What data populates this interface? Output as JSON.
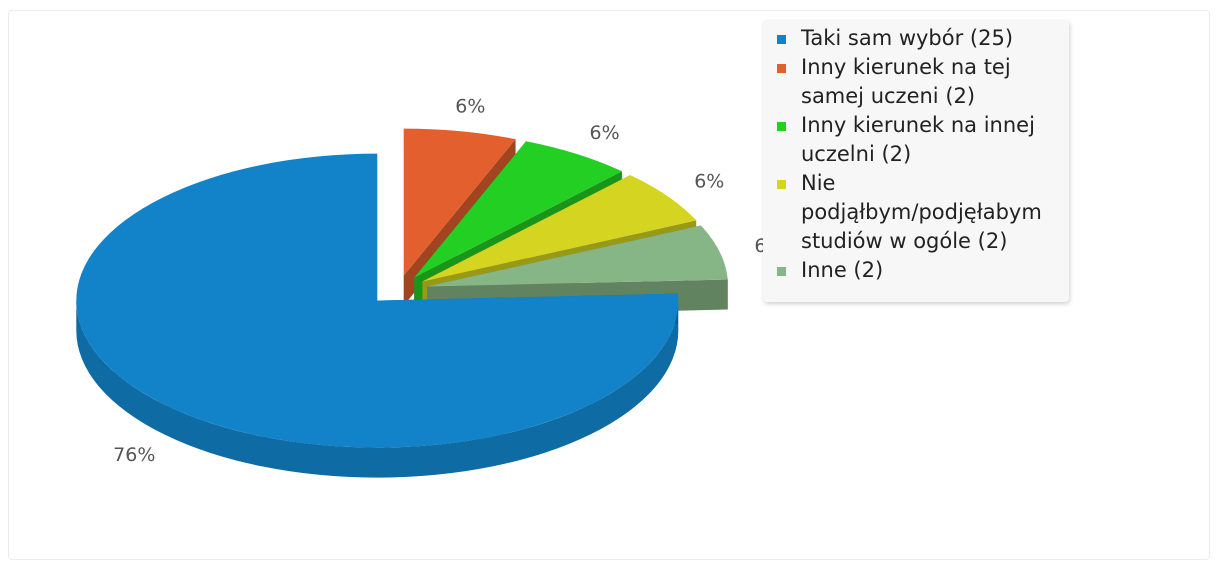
{
  "chart_data": {
    "type": "pie",
    "three_d": true,
    "exploded": true,
    "slices": [
      {
        "label": "Taki sam wybór (25)",
        "value": 25,
        "percent_label": "76%",
        "color": "#1283c8"
      },
      {
        "label": "Inny kierunek na tej samej uczeni (2)",
        "value": 2,
        "percent_label": "6%",
        "color": "#e35f2d"
      },
      {
        "label": "Inny kierunek na innej uczelni (2)",
        "value": 2,
        "percent_label": "6%",
        "color": "#24cf24"
      },
      {
        "label": "Nie podjąłbym/podjęłabym studiów w ogóle (2)",
        "value": 2,
        "percent_label": "6%",
        "color": "#d4d421"
      },
      {
        "label": "Inne (2)",
        "value": 2,
        "percent_label": "6%",
        "color": "#87b686"
      }
    ],
    "legend_position": "top-right"
  },
  "legend": {
    "items": [
      {
        "lines": [
          "Taki sam wybór (25)"
        ],
        "color": "#1283c8"
      },
      {
        "lines": [
          "Inny kierunek na tej",
          "samej uczeni (2)"
        ],
        "color": "#e35f2d"
      },
      {
        "lines": [
          "Inny kierunek na innej",
          "uczelni (2)"
        ],
        "color": "#24cf24"
      },
      {
        "lines": [
          "Nie",
          "podjąłbym/podjęłabym",
          "studiów w ogóle (2)"
        ],
        "color": "#d4d421"
      },
      {
        "lines": [
          "Inne (2)"
        ],
        "color": "#87b686"
      }
    ]
  }
}
